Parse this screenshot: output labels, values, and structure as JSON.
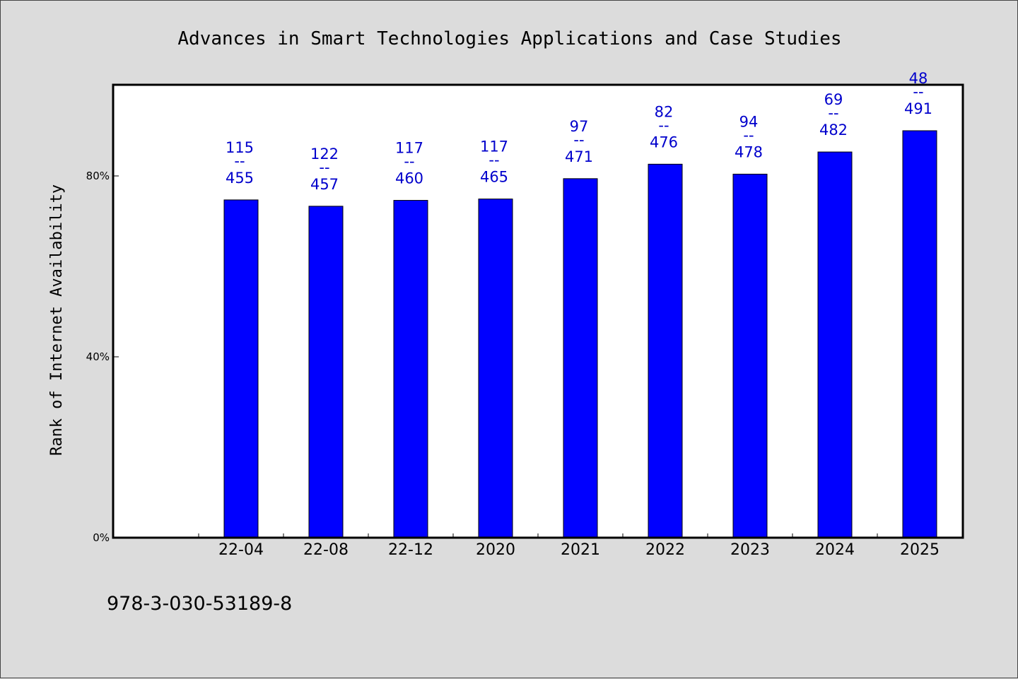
{
  "chart_data": {
    "type": "bar",
    "title": "Advances in Smart Technologies Applications and Case Studies",
    "ylabel": "Rank of Internet Availability",
    "xlabel": "",
    "categories": [
      "22-04",
      "22-08",
      "22-12",
      "2020",
      "2021",
      "2022",
      "2023",
      "2024",
      "2025"
    ],
    "values": [
      74.7,
      73.3,
      74.6,
      74.9,
      79.4,
      82.6,
      80.4,
      85.3,
      90.0
    ],
    "data_labels": [
      {
        "top": "115",
        "sep": "--",
        "bottom": "455"
      },
      {
        "top": "122",
        "sep": "--",
        "bottom": "457"
      },
      {
        "top": "117",
        "sep": "--",
        "bottom": "460"
      },
      {
        "top": "117",
        "sep": "--",
        "bottom": "465"
      },
      {
        "top": "97",
        "sep": "--",
        "bottom": "471"
      },
      {
        "top": "82",
        "sep": "--",
        "bottom": "476"
      },
      {
        "top": "94",
        "sep": "--",
        "bottom": "478"
      },
      {
        "top": "69",
        "sep": "--",
        "bottom": "482"
      },
      {
        "top": "48",
        "sep": "--",
        "bottom": "491"
      }
    ],
    "yticks": [
      0,
      40,
      80
    ],
    "ytick_labels": [
      "0%",
      "40%",
      "80%"
    ],
    "ylim": [
      0,
      100
    ],
    "x_slots": 10,
    "first_slot_empty": true,
    "grid": false,
    "bar_color": "#0000ff",
    "label_color": "#0000cc"
  },
  "footer": {
    "isbn": "978-3-030-53189-8"
  }
}
